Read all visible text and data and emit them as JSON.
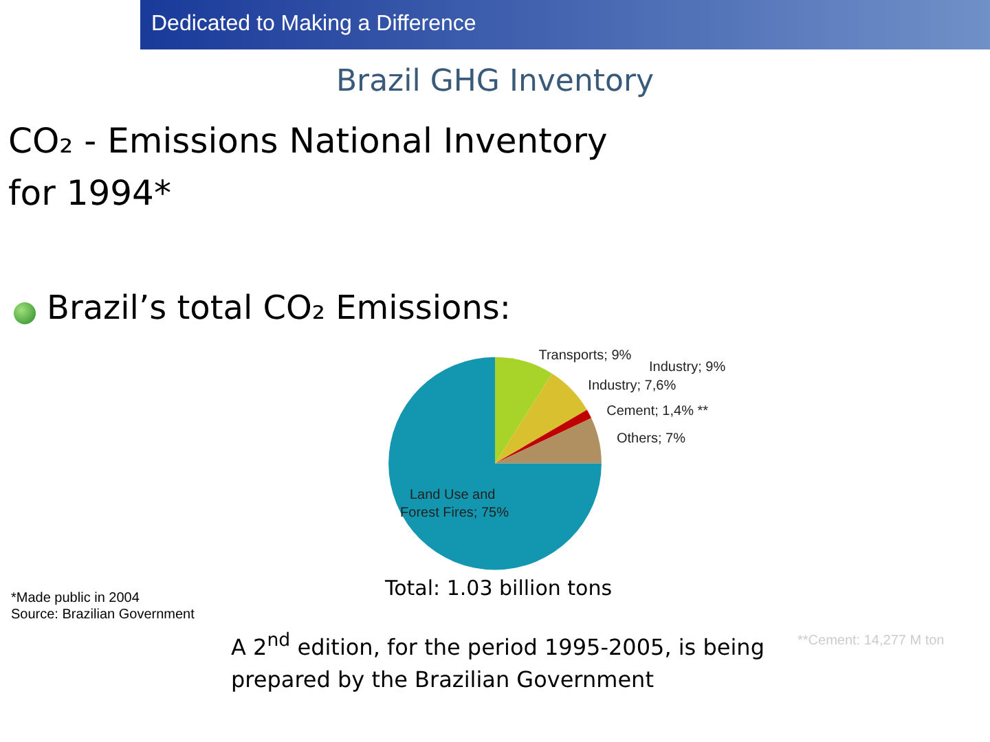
{
  "chart_data": {
    "type": "pie",
    "title": "CO₂ - Emissions National Inventory for 1994*",
    "subtitle": "Brazil GHG Inventory",
    "categories": [
      "Transports",
      "Industry",
      "Cement",
      "Others",
      "Land Use and Forest Fires"
    ],
    "values": [
      9,
      7.6,
      1.4,
      7,
      75
    ],
    "value_labels": [
      "9%",
      "7,6%",
      "1,4% **",
      "7%",
      "75%"
    ],
    "colors": [
      "#a8d42a",
      "#d9c02e",
      "#c00000",
      "#b09060",
      "#1396b0"
    ],
    "legend": false,
    "annotations": [
      "Dedicated to Making a Difference",
      "Brazil’s total CO₂ Emissions:",
      "Industry; 9%",
      "Total: 1.03 billion tons",
      "A 2$^{nd}$ edition, for the period 1995-2005, is being prepared by the Brazilian Government",
      "*Made public in 2004",
      "Source: Brazilian Government",
      "**Cement: 14,277 M ton"
    ]
  }
}
